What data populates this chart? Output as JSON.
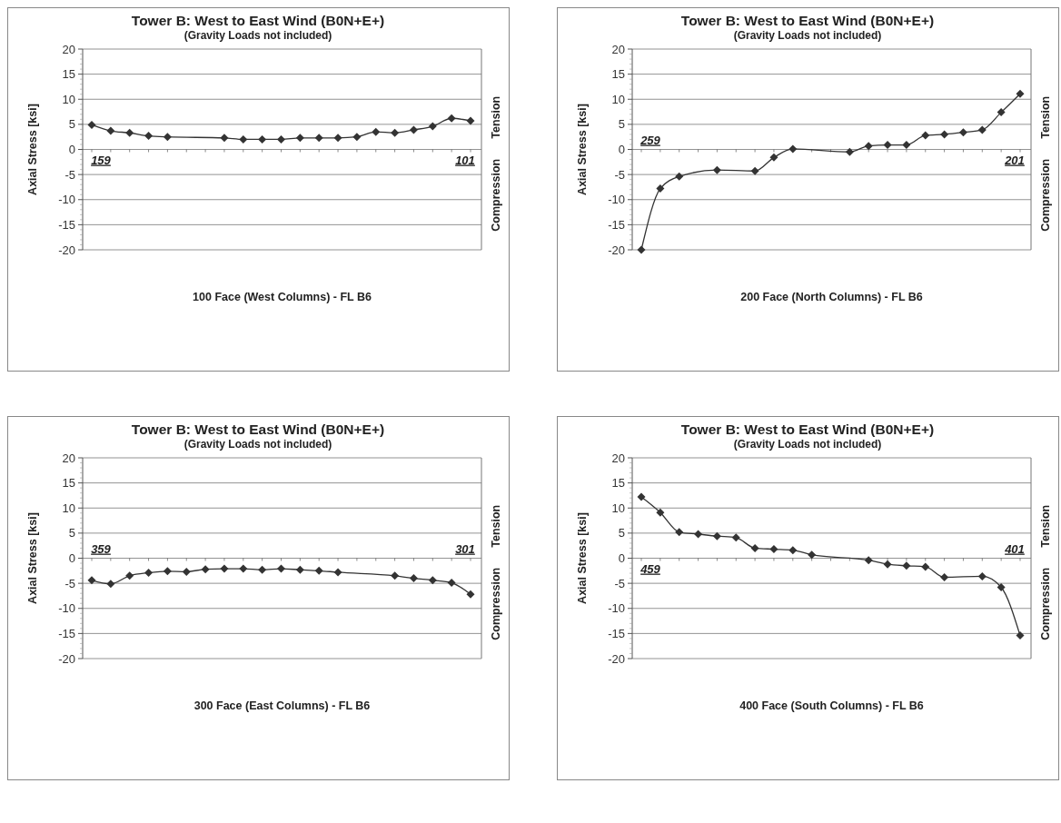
{
  "chart_data": [
    {
      "type": "line",
      "title": "Tower B: West to East Wind (B0N+E+)",
      "subtitle": "(Gravity Loads not included)",
      "xlabel": "100 Face (West Columns) - FL B6",
      "ylabel": "Axial Stress [ksi]",
      "categories": [
        null,
        null,
        null,
        null,
        null,
        null,
        null,
        null,
        null,
        null,
        null,
        null,
        null,
        null,
        null,
        null,
        null,
        null,
        null,
        null,
        null
      ],
      "series": [
        {
          "color": "#333333",
          "values": [
            4.9,
            3.7,
            3.3,
            2.7,
            2.5,
            null,
            null,
            2.3,
            2.0,
            2.0,
            2.0,
            2.3,
            2.3,
            2.3,
            2.5,
            3.5,
            3.3,
            3.9,
            4.6,
            6.2,
            5.7
          ]
        }
      ],
      "ylim": [
        -20,
        20
      ],
      "yticks": [
        -20,
        -15,
        -10,
        -5,
        0,
        5,
        10,
        15,
        20
      ],
      "grid": "y",
      "marker": "diamond",
      "line_style": "solid",
      "annotations": [
        "159",
        "101",
        "Tension",
        "Compression"
      ]
    },
    {
      "type": "line",
      "title": "Tower B: West to East Wind (B0N+E+)",
      "subtitle": "(Gravity Loads not included)",
      "xlabel": "200 Face (North Columns) - FL B6",
      "ylabel": "Axial Stress [ksi]",
      "categories": [
        null,
        null,
        null,
        null,
        null,
        null,
        null,
        null,
        null,
        null,
        null,
        null,
        null,
        null,
        null,
        null,
        null,
        null,
        null,
        null,
        null
      ],
      "series": [
        {
          "color": "#333333",
          "values": [
            -20,
            -7.8,
            -5.4,
            null,
            -4.1,
            null,
            -4.3,
            -1.6,
            0.1,
            null,
            null,
            -0.5,
            0.7,
            0.9,
            0.9,
            2.8,
            3.0,
            3.4,
            3.9,
            7.4,
            11.1
          ]
        }
      ],
      "ylim": [
        -20,
        20
      ],
      "yticks": [
        -20,
        -15,
        -10,
        -5,
        0,
        5,
        10,
        15,
        20
      ],
      "grid": "y",
      "marker": "diamond",
      "line_style": "solid",
      "annotations": [
        "259",
        "201",
        "Tension",
        "Compression"
      ]
    },
    {
      "type": "line",
      "title": "Tower B: West to East Wind (B0N+E+)",
      "subtitle": "(Gravity Loads not included)",
      "xlabel": "300 Face (East Columns) - FL B6",
      "ylabel": "Axial Stress [ksi]",
      "categories": [
        null,
        null,
        null,
        null,
        null,
        null,
        null,
        null,
        null,
        null,
        null,
        null,
        null,
        null,
        null,
        null,
        null,
        null,
        null,
        null,
        null
      ],
      "series": [
        {
          "color": "#333333",
          "values": [
            -4.4,
            -5.1,
            -3.5,
            -2.9,
            -2.6,
            -2.7,
            -2.2,
            -2.1,
            -2.1,
            -2.3,
            -2.1,
            -2.3,
            -2.5,
            -2.8,
            null,
            null,
            -3.5,
            -4.0,
            -4.4,
            -4.9,
            -7.2
          ]
        }
      ],
      "ylim": [
        -20,
        20
      ],
      "yticks": [
        -20,
        -15,
        -10,
        -5,
        0,
        5,
        10,
        15,
        20
      ],
      "grid": "y",
      "marker": "diamond",
      "line_style": "solid",
      "annotations": [
        "359",
        "301",
        "Tension",
        "Compression"
      ]
    },
    {
      "type": "line",
      "title": "Tower B: West to East Wind (B0N+E+)",
      "subtitle": "(Gravity Loads not included)",
      "xlabel": "400 Face (South Columns) - FL B6",
      "ylabel": "Axial Stress [ksi]",
      "categories": [
        null,
        null,
        null,
        null,
        null,
        null,
        null,
        null,
        null,
        null,
        null,
        null,
        null,
        null,
        null,
        null,
        null,
        null,
        null,
        null,
        null
      ],
      "series": [
        {
          "color": "#333333",
          "values": [
            12.2,
            9.1,
            5.2,
            4.8,
            4.4,
            4.1,
            2.0,
            1.8,
            1.6,
            0.7,
            null,
            null,
            -0.4,
            -1.2,
            -1.5,
            -1.7,
            -3.8,
            null,
            -3.6,
            -5.8,
            -15.4
          ]
        }
      ],
      "ylim": [
        -20,
        20
      ],
      "yticks": [
        -20,
        -15,
        -10,
        -5,
        0,
        5,
        10,
        15,
        20
      ],
      "grid": "y",
      "marker": "diamond",
      "line_style": "solid",
      "annotations": [
        "459",
        "401",
        "Tension",
        "Compression"
      ]
    }
  ]
}
